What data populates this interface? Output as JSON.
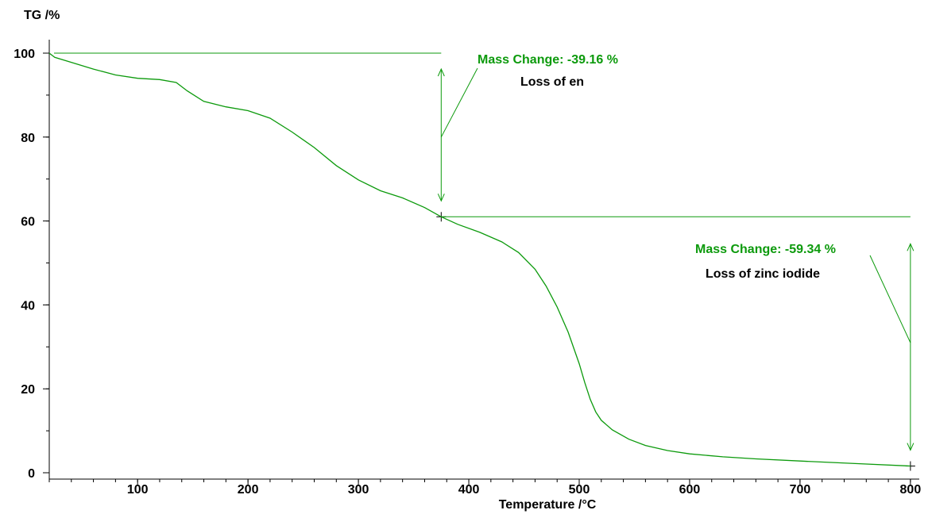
{
  "chart_data": {
    "type": "line",
    "title": "",
    "xlabel": "Temperature /°C",
    "ylabel": "TG /%",
    "xlim": [
      20,
      808
    ],
    "ylim": [
      0,
      100
    ],
    "x_ticks": [
      100,
      200,
      300,
      400,
      500,
      600,
      700,
      800
    ],
    "y_ticks": [
      0,
      20,
      40,
      60,
      80,
      100
    ],
    "grid": false,
    "colors": {
      "series": "#0c9a0c",
      "axis": "#000000"
    },
    "series": [
      {
        "x": [
          20,
          25,
          40,
          60,
          80,
          100,
          120,
          135,
          145,
          160,
          180,
          200,
          220,
          240,
          260,
          280,
          300,
          320,
          340,
          360,
          375,
          390,
          410,
          430,
          445,
          460,
          470,
          480,
          490,
          500,
          505,
          510,
          515,
          520,
          530,
          545,
          560,
          580,
          600,
          630,
          660,
          700,
          750,
          800
        ],
        "y": [
          100,
          99.0,
          97.8,
          96.2,
          94.8,
          94.0,
          93.7,
          93.0,
          91.0,
          88.5,
          87.2,
          86.3,
          84.5,
          81.2,
          77.5,
          73.2,
          69.8,
          67.2,
          65.5,
          63.2,
          61.0,
          59.2,
          57.3,
          55.0,
          52.5,
          48.5,
          44.5,
          39.5,
          33.5,
          26.0,
          21.5,
          17.5,
          14.5,
          12.5,
          10.2,
          8.0,
          6.5,
          5.3,
          4.5,
          3.8,
          3.3,
          2.8,
          2.2,
          1.6
        ]
      }
    ],
    "steps": [
      {
        "x": 375,
        "y_top": 100,
        "y_bottom": 61.0,
        "mass_change_label": "Mass Change:  -39.16 %",
        "description": "Loss of en"
      },
      {
        "x": 800,
        "y_top": 61.0,
        "y_bottom": 1.6,
        "mass_change_label": "Mass Change:  -59.34 %",
        "description": "Loss of zinc iodide"
      }
    ]
  }
}
